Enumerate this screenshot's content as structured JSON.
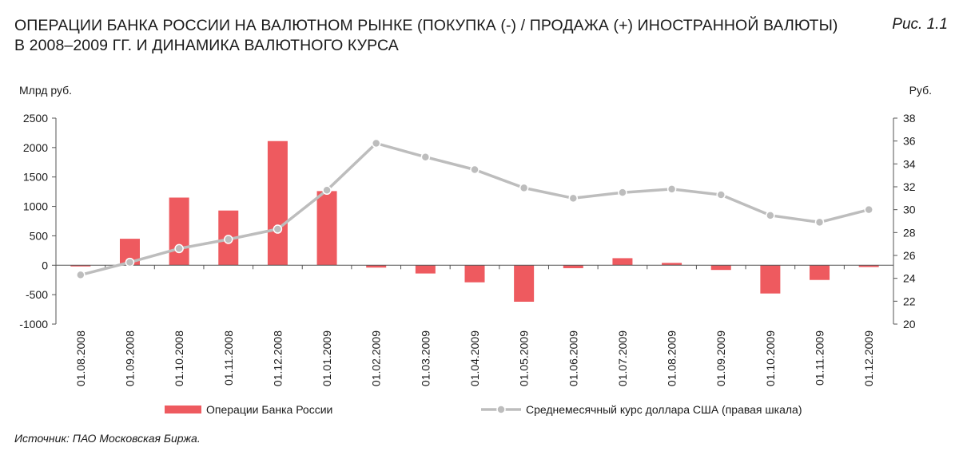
{
  "header": {
    "title_line1": "ОПЕРАЦИИ БАНКА РОССИИ НА ВАЛЮТНОМ РЫНКЕ (ПОКУПКА (-) / ПРОДАЖА (+) ИНОСТРАННОЙ ВАЛЮТЫ)",
    "title_line2": "В 2008–2009 ГГ. И ДИНАМИКА ВАЛЮТНОГО КУРСА",
    "figure_label": "Рис. 1.1"
  },
  "footer": {
    "source": "Источник: ПАО Московская Биржа."
  },
  "colors": {
    "bar": "#EE5A5F",
    "line": "#BDBDBD",
    "axis": "#555555"
  },
  "chart_data": {
    "type": "bar",
    "categories": [
      "01.08.2008",
      "01.09.2008",
      "01.10.2008",
      "01.11.2008",
      "01.12.2008",
      "01.01.2009",
      "01.02.2009",
      "01.03.2009",
      "01.04.2009",
      "01.05.2009",
      "01.06.2009",
      "01.07.2009",
      "01.08.2009",
      "01.09.2009",
      "01.10.2009",
      "01.11.2009",
      "01.12.2009"
    ],
    "series": [
      {
        "name": "Операции Банка России",
        "type": "bar",
        "axis": "left",
        "values": [
          -20,
          450,
          1150,
          930,
          2110,
          1260,
          -40,
          -140,
          -290,
          -620,
          -50,
          120,
          40,
          -80,
          -480,
          -250,
          -30
        ]
      },
      {
        "name": "Среднемесячный курс доллара США (правая шкала)",
        "type": "line",
        "axis": "right",
        "values": [
          24.3,
          25.4,
          26.6,
          27.4,
          28.3,
          31.7,
          35.8,
          34.6,
          33.5,
          31.9,
          31.0,
          31.5,
          31.8,
          31.3,
          29.5,
          28.9,
          30.0
        ]
      }
    ],
    "yleft": {
      "label": "Млрд руб.",
      "ylim": [
        -1000,
        2500
      ],
      "ticks": [
        "2500",
        "2000",
        "1500",
        "1000",
        "500",
        "0",
        "-500",
        "-1000"
      ]
    },
    "yright": {
      "label": "Руб.",
      "ylim": [
        20,
        38
      ],
      "ticks": [
        "38",
        "36",
        "34",
        "32",
        "30",
        "28",
        "26",
        "24",
        "22",
        "20"
      ]
    },
    "grid": false,
    "legend_position": "bottom"
  }
}
